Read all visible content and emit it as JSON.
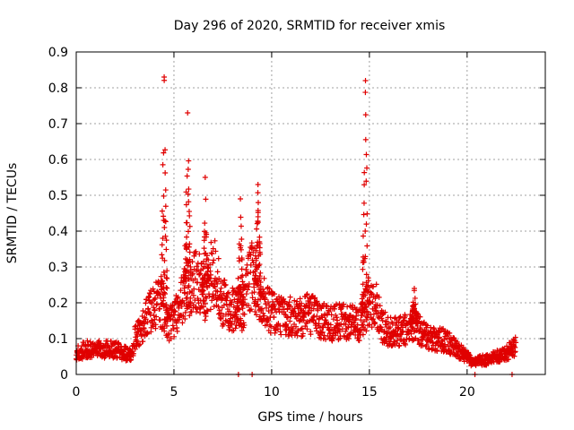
{
  "chart_data": {
    "type": "scatter",
    "title": "Day 296 of 2020, SRMTID for receiver xmis",
    "xlabel": "GPS time / hours",
    "ylabel": "SRMTID / TECUs",
    "xlim": [
      0,
      24
    ],
    "ylim": [
      0,
      0.9
    ],
    "xticks": [
      "0",
      "5",
      "10",
      "15",
      "20"
    ],
    "yticks": [
      "0",
      "0.1",
      "0.2",
      "0.3",
      "0.4",
      "0.5",
      "0.6",
      "0.7",
      "0.8",
      "0.9"
    ],
    "grid": true,
    "marker": "+",
    "color": "#e00000",
    "series": [
      {
        "name": "SRMTID",
        "profile_x": [
          0.0,
          0.5,
          1.0,
          1.5,
          2.0,
          2.5,
          2.8,
          3.0,
          3.3,
          3.6,
          3.9,
          4.2,
          4.5,
          4.7,
          5.0,
          5.3,
          5.5,
          5.8,
          6.0,
          6.3,
          6.5,
          6.8,
          7.0,
          7.2,
          7.5,
          8.0,
          8.5,
          8.8,
          9.0,
          9.3,
          9.6,
          10.0,
          10.5,
          11.0,
          11.5,
          12.0,
          12.5,
          13.0,
          13.5,
          14.0,
          14.5,
          14.8,
          15.0,
          15.3,
          15.6,
          16.0,
          16.5,
          17.0,
          17.3,
          17.6,
          18.0,
          18.5,
          19.0,
          19.5,
          20.0,
          20.3,
          20.6,
          21.0,
          21.5,
          22.0,
          22.5
        ],
        "profile_y": [
          0.06,
          0.07,
          0.07,
          0.07,
          0.07,
          0.06,
          0.05,
          0.1,
          0.13,
          0.16,
          0.18,
          0.2,
          0.18,
          0.14,
          0.16,
          0.2,
          0.22,
          0.25,
          0.28,
          0.25,
          0.22,
          0.25,
          0.3,
          0.26,
          0.2,
          0.18,
          0.18,
          0.25,
          0.28,
          0.24,
          0.2,
          0.17,
          0.17,
          0.16,
          0.16,
          0.17,
          0.15,
          0.14,
          0.15,
          0.15,
          0.14,
          0.18,
          0.2,
          0.2,
          0.14,
          0.12,
          0.12,
          0.13,
          0.15,
          0.12,
          0.1,
          0.1,
          0.09,
          0.07,
          0.05,
          0.03,
          0.04,
          0.04,
          0.05,
          0.06,
          0.08
        ],
        "spikes": [
          {
            "x": 4.5,
            "peak": 0.83
          },
          {
            "x": 5.7,
            "peak": 0.73
          },
          {
            "x": 6.6,
            "peak": 0.55
          },
          {
            "x": 8.4,
            "peak": 0.49
          },
          {
            "x": 9.3,
            "peak": 0.53
          },
          {
            "x": 14.8,
            "peak": 0.82
          },
          {
            "x": 17.3,
            "peak": 0.24
          }
        ],
        "zero_points_x": [
          8.3,
          9.0,
          20.4,
          22.3
        ]
      }
    ]
  }
}
